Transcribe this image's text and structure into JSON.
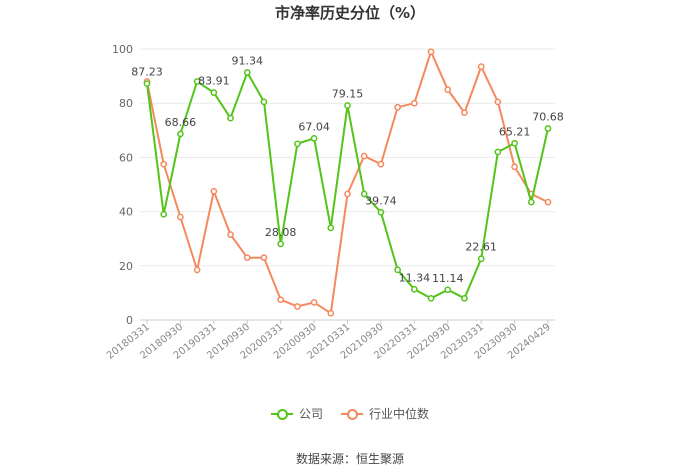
{
  "chart_data": {
    "type": "line",
    "title": "市净率历史分位（%）",
    "xlabel": "",
    "ylabel": "",
    "ylim": [
      0,
      100
    ],
    "yticks": [
      0,
      20,
      40,
      60,
      80,
      100
    ],
    "grid": true,
    "legend_position": "bottom-center",
    "x": [
      "20180331",
      "20180630",
      "20180930",
      "20181231",
      "20190331",
      "20190630",
      "20190930",
      "20191231",
      "20200331",
      "20200630",
      "20200930",
      "20201231",
      "20210331",
      "20210630",
      "20210930",
      "20211231",
      "20220331",
      "20220630",
      "20220930",
      "20221231",
      "20230331",
      "20230630",
      "20230930",
      "20231231",
      "20240429"
    ],
    "xtick_labels": [
      "20180331",
      "20180930",
      "20190331",
      "20190930",
      "20200331",
      "20200930",
      "20210331",
      "20210930",
      "20220331",
      "20220930",
      "20230331",
      "20230930",
      "20240429"
    ],
    "series": [
      {
        "name": "公司",
        "color": "#52c41a",
        "values": [
          87.23,
          39,
          68.66,
          88,
          83.91,
          74.5,
          91.34,
          80.5,
          28.08,
          65,
          67.04,
          34,
          79.15,
          46.5,
          39.74,
          18.5,
          11.34,
          8,
          11.14,
          8,
          22.61,
          62,
          65.21,
          43.5,
          70.68
        ],
        "labels": {
          "0": "87.23",
          "2": "68.66",
          "4": "83.91",
          "6": "91.34",
          "8": "28.08",
          "10": "67.04",
          "12": "79.15",
          "14": "39.74",
          "16": "11.34",
          "18": "11.14",
          "20": "22.61",
          "22": "65.21",
          "24": "70.68"
        }
      },
      {
        "name": "行业中位数",
        "color": "#f5895e",
        "values": [
          88,
          57.5,
          38,
          18.5,
          47.5,
          31.5,
          23,
          23,
          7.5,
          5,
          6.5,
          2.5,
          46.5,
          60.5,
          57.5,
          78.5,
          80,
          99,
          85,
          76.5,
          93.5,
          80.5,
          56.5,
          46.5,
          43.5
        ]
      }
    ]
  },
  "source_text": "数据来源：恒生聚源"
}
